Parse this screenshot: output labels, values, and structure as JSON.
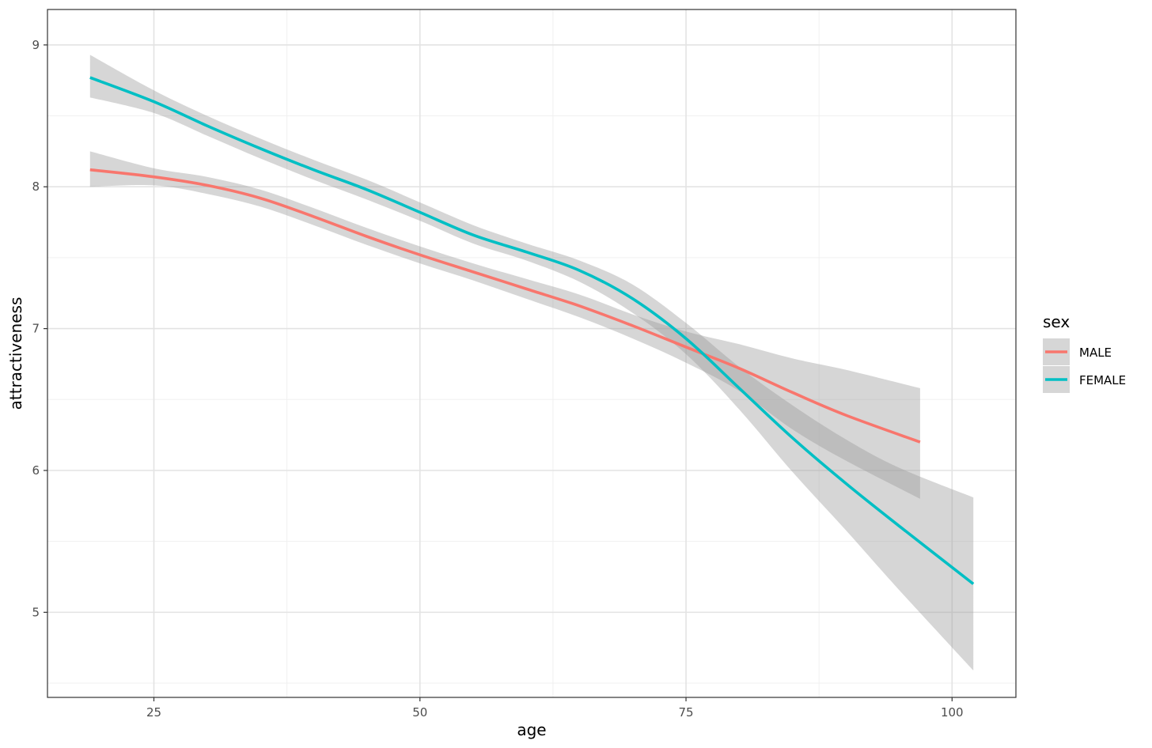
{
  "chart_data": {
    "type": "line",
    "xlabel": "age",
    "ylabel": "attractiveness",
    "xlim": [
      15,
      106
    ],
    "ylim": [
      4.4,
      9.25
    ],
    "x_ticks": [
      25,
      50,
      75,
      100
    ],
    "x_tick_labels": [
      "25",
      "50",
      "75",
      "100"
    ],
    "y_ticks": [
      5,
      6,
      7,
      8,
      9
    ],
    "y_tick_labels": [
      "5",
      "6",
      "7",
      "8",
      "9"
    ],
    "grid": true,
    "legend": {
      "title": "sex",
      "placement": "right",
      "entries": [
        "MALE",
        "FEMALE"
      ]
    },
    "colors": {
      "MALE": "#F8766D",
      "FEMALE": "#00BFC4",
      "ribbon": "#999999"
    },
    "series": [
      {
        "name": "MALE",
        "x": [
          19,
          25,
          30,
          35,
          40,
          45,
          50,
          55,
          60,
          65,
          70,
          75,
          80,
          85,
          90,
          97
        ],
        "y": [
          8.12,
          8.07,
          8.01,
          7.92,
          7.79,
          7.65,
          7.52,
          7.4,
          7.28,
          7.16,
          7.02,
          6.87,
          6.72,
          6.55,
          6.39,
          6.2
        ],
        "lower": [
          8.0,
          8.01,
          7.95,
          7.86,
          7.73,
          7.59,
          7.46,
          7.34,
          7.21,
          7.08,
          6.93,
          6.76,
          6.56,
          6.29,
          6.07,
          5.8
        ],
        "upper": [
          8.25,
          8.13,
          8.07,
          7.98,
          7.85,
          7.71,
          7.58,
          7.46,
          7.35,
          7.24,
          7.1,
          6.98,
          6.89,
          6.79,
          6.71,
          6.58
        ]
      },
      {
        "name": "FEMALE",
        "x": [
          19,
          25,
          30,
          35,
          40,
          45,
          50,
          55,
          60,
          65,
          70,
          75,
          80,
          85,
          90,
          95,
          102
        ],
        "y": [
          8.77,
          8.6,
          8.43,
          8.27,
          8.12,
          7.98,
          7.82,
          7.66,
          7.54,
          7.41,
          7.21,
          6.93,
          6.58,
          6.23,
          5.91,
          5.61,
          5.2
        ],
        "lower": [
          8.63,
          8.52,
          8.36,
          8.2,
          8.05,
          7.91,
          7.76,
          7.6,
          7.48,
          7.33,
          7.11,
          6.82,
          6.43,
          5.99,
          5.58,
          5.16,
          4.59
        ],
        "upper": [
          8.93,
          8.68,
          8.5,
          8.34,
          8.19,
          8.05,
          7.89,
          7.73,
          7.6,
          7.48,
          7.31,
          7.04,
          6.73,
          6.46,
          6.22,
          6.02,
          5.81
        ]
      }
    ]
  }
}
